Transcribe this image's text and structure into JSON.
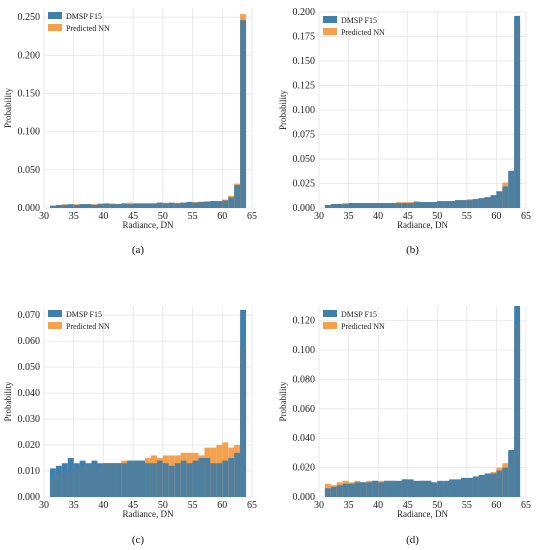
{
  "colors": {
    "dmsp": "#3f7fad",
    "nn": "#f4a04d",
    "grid": "#e2e2e2"
  },
  "chart_data": [
    {
      "type": "bar",
      "panel_label": "(a)",
      "xlabel": "Radiance, DN",
      "ylabel": "Probability",
      "xlim": [
        30,
        65
      ],
      "ylim": [
        0,
        0.262
      ],
      "xticks": [
        "30",
        "35",
        "40",
        "45",
        "50",
        "55",
        "60",
        "65"
      ],
      "yticks": [
        "0.000",
        "0.050",
        "0.100",
        "0.150",
        "0.200",
        "0.250"
      ],
      "grid": true,
      "legend_position": "top-left",
      "bin_start": 31,
      "series": [
        {
          "name": "DMSP F15",
          "values": [
            0.003,
            0.004,
            0.004,
            0.005,
            0.004,
            0.005,
            0.005,
            0.004,
            0.005,
            0.006,
            0.005,
            0.005,
            0.006,
            0.005,
            0.006,
            0.006,
            0.006,
            0.006,
            0.007,
            0.006,
            0.007,
            0.006,
            0.007,
            0.008,
            0.007,
            0.008,
            0.008,
            0.009,
            0.009,
            0.01,
            0.014,
            0.03,
            0.246
          ]
        },
        {
          "name": "Predicted NN",
          "values": [
            0.003,
            0.004,
            0.005,
            0.004,
            0.005,
            0.005,
            0.005,
            0.005,
            0.006,
            0.005,
            0.006,
            0.005,
            0.006,
            0.007,
            0.006,
            0.006,
            0.006,
            0.006,
            0.007,
            0.007,
            0.006,
            0.007,
            0.007,
            0.007,
            0.008,
            0.008,
            0.009,
            0.009,
            0.008,
            0.011,
            0.016,
            0.032,
            0.254
          ]
        }
      ]
    },
    {
      "type": "bar",
      "panel_label": "(b)",
      "xlabel": "Radiance, DN",
      "ylabel": "Probability",
      "xlim": [
        30,
        65
      ],
      "ylim": [
        0,
        0.2
      ],
      "xticks": [
        "30",
        "35",
        "40",
        "45",
        "50",
        "55",
        "60",
        "65"
      ],
      "yticks": [
        "0.000",
        "0.025",
        "0.050",
        "0.075",
        "0.100",
        "0.125",
        "0.150",
        "0.175",
        "0.200"
      ],
      "grid": true,
      "legend_position": "top-left",
      "bin_start": 31,
      "series": [
        {
          "name": "DMSP F15",
          "values": [
            0.003,
            0.004,
            0.004,
            0.004,
            0.005,
            0.005,
            0.005,
            0.005,
            0.005,
            0.005,
            0.005,
            0.005,
            0.005,
            0.005,
            0.005,
            0.006,
            0.006,
            0.006,
            0.006,
            0.007,
            0.007,
            0.007,
            0.008,
            0.008,
            0.008,
            0.009,
            0.01,
            0.011,
            0.013,
            0.017,
            0.022,
            0.038,
            0.196
          ]
        },
        {
          "name": "Predicted NN",
          "values": [
            0.003,
            0.004,
            0.004,
            0.005,
            0.005,
            0.005,
            0.005,
            0.005,
            0.005,
            0.005,
            0.005,
            0.005,
            0.006,
            0.006,
            0.006,
            0.007,
            0.006,
            0.006,
            0.006,
            0.007,
            0.007,
            0.007,
            0.008,
            0.008,
            0.009,
            0.009,
            0.01,
            0.011,
            0.013,
            0.017,
            0.026,
            0.036,
            0.19
          ]
        }
      ]
    },
    {
      "type": "bar",
      "panel_label": "(c)",
      "xlabel": "Radiance, DN",
      "ylabel": "Probability",
      "xlim": [
        30,
        65
      ],
      "ylim": [
        0,
        0.0735
      ],
      "xticks": [
        "30",
        "35",
        "40",
        "45",
        "50",
        "55",
        "60",
        "65"
      ],
      "yticks": [
        "0.000",
        "0.010",
        "0.020",
        "0.030",
        "0.040",
        "0.050",
        "0.060",
        "0.070"
      ],
      "grid": true,
      "legend_position": "top-left",
      "bin_start": 31,
      "series": [
        {
          "name": "DMSP F15",
          "values": [
            0.011,
            0.012,
            0.013,
            0.015,
            0.013,
            0.014,
            0.013,
            0.014,
            0.013,
            0.013,
            0.013,
            0.013,
            0.013,
            0.014,
            0.014,
            0.014,
            0.013,
            0.013,
            0.014,
            0.013,
            0.012,
            0.013,
            0.014,
            0.013,
            0.014,
            0.015,
            0.015,
            0.013,
            0.013,
            0.014,
            0.015,
            0.017,
            0.072
          ]
        },
        {
          "name": "Predicted NN",
          "values": [
            0.007,
            0.009,
            0.01,
            0.01,
            0.011,
            0.012,
            0.012,
            0.012,
            0.012,
            0.013,
            0.013,
            0.013,
            0.014,
            0.014,
            0.014,
            0.014,
            0.015,
            0.016,
            0.015,
            0.016,
            0.016,
            0.016,
            0.017,
            0.017,
            0.017,
            0.016,
            0.019,
            0.019,
            0.02,
            0.021,
            0.019,
            0.02,
            0.058
          ]
        }
      ]
    },
    {
      "type": "bar",
      "panel_label": "(d)",
      "xlabel": "Radiance, DN",
      "ylabel": "Probability",
      "xlim": [
        30,
        65
      ],
      "ylim": [
        0,
        0.13
      ],
      "xticks": [
        "30",
        "35",
        "40",
        "45",
        "50",
        "55",
        "60",
        "65"
      ],
      "yticks": [
        "0.000",
        "0.020",
        "0.040",
        "0.060",
        "0.080",
        "0.100",
        "0.120"
      ],
      "grid": true,
      "legend_position": "top-left",
      "bin_start": 31,
      "series": [
        {
          "name": "DMSP F15",
          "values": [
            0.006,
            0.007,
            0.008,
            0.009,
            0.009,
            0.01,
            0.01,
            0.01,
            0.011,
            0.01,
            0.011,
            0.011,
            0.011,
            0.012,
            0.012,
            0.011,
            0.011,
            0.011,
            0.01,
            0.011,
            0.011,
            0.012,
            0.012,
            0.013,
            0.013,
            0.014,
            0.015,
            0.016,
            0.016,
            0.018,
            0.02,
            0.032,
            0.13
          ]
        },
        {
          "name": "Predicted NN",
          "values": [
            0.009,
            0.008,
            0.01,
            0.011,
            0.01,
            0.011,
            0.01,
            0.011,
            0.011,
            0.011,
            0.011,
            0.011,
            0.01,
            0.012,
            0.011,
            0.01,
            0.011,
            0.011,
            0.009,
            0.01,
            0.01,
            0.011,
            0.011,
            0.012,
            0.012,
            0.013,
            0.014,
            0.015,
            0.017,
            0.02,
            0.023,
            0.03,
            0.118
          ]
        }
      ]
    }
  ]
}
